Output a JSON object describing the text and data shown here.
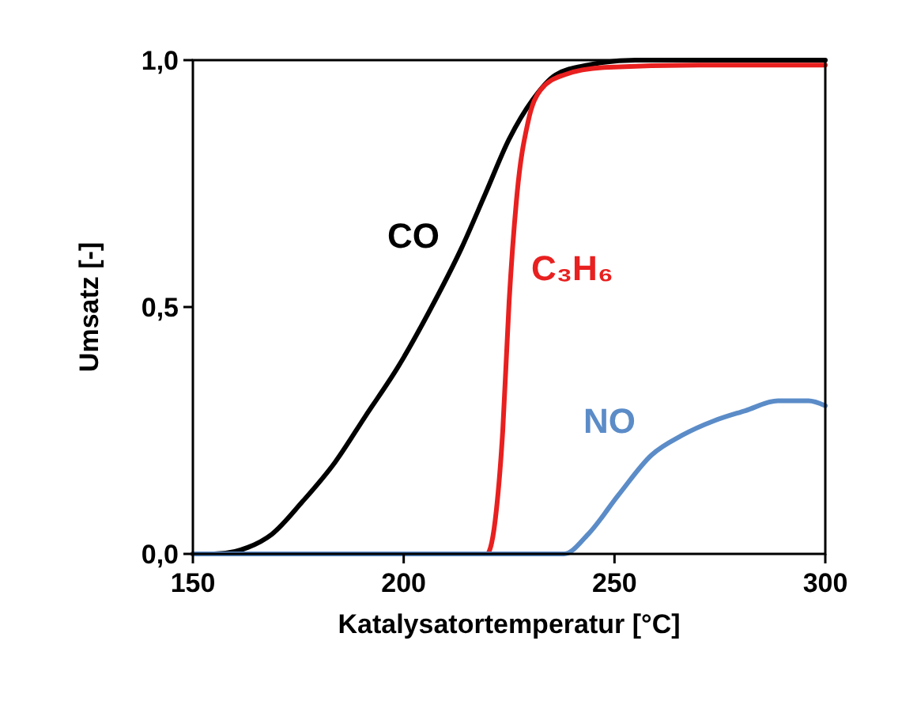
{
  "chart_data": {
    "type": "line",
    "xlabel": "Katalysatortemperatur [°C]",
    "ylabel": "Umsatz [-]",
    "xlim": [
      150,
      300
    ],
    "xticks": [
      150,
      200,
      250,
      300
    ],
    "ylim": [
      0,
      1
    ],
    "yticks": [
      {
        "value": 0,
        "label": "0,0"
      },
      {
        "value": 0.5,
        "label": "0,5"
      },
      {
        "value": 1,
        "label": "1,0"
      }
    ],
    "grid": false,
    "line_style": "solid",
    "series": [
      {
        "name": "CO",
        "color": "#000000",
        "x": [
          150,
          155,
          160,
          163,
          168.75,
          176,
          183.75,
          191,
          198.75,
          206,
          213.75,
          219.4,
          225,
          230.6,
          236,
          243.75,
          255,
          270,
          300
        ],
        "values": [
          0,
          0,
          0.005,
          0.013,
          0.04,
          0.106,
          0.186,
          0.28,
          0.38,
          0.49,
          0.62,
          0.73,
          0.84,
          0.92,
          0.97,
          0.99,
          1,
          1,
          1
        ]
      },
      {
        "name": "C₃H₆",
        "color": "#e8201f",
        "x": [
          150,
          200,
          219.75,
          222,
          223.5,
          225,
          226.9,
          229.5,
          232.5,
          238,
          247.5,
          270,
          300
        ],
        "values": [
          0,
          0,
          0,
          0.09,
          0.25,
          0.51,
          0.73,
          0.875,
          0.94,
          0.97,
          0.985,
          0.99,
          0.99
        ]
      },
      {
        "name": "NO",
        "color": "#5b8cc8",
        "x": [
          150,
          200,
          238,
          243.75,
          251,
          258.75,
          266,
          273.75,
          281,
          288.75,
          296,
          300
        ],
        "values": [
          0,
          0,
          0,
          0.04,
          0.12,
          0.2,
          0.24,
          0.27,
          0.29,
          0.31,
          0.31,
          0.3
        ]
      }
    ]
  }
}
